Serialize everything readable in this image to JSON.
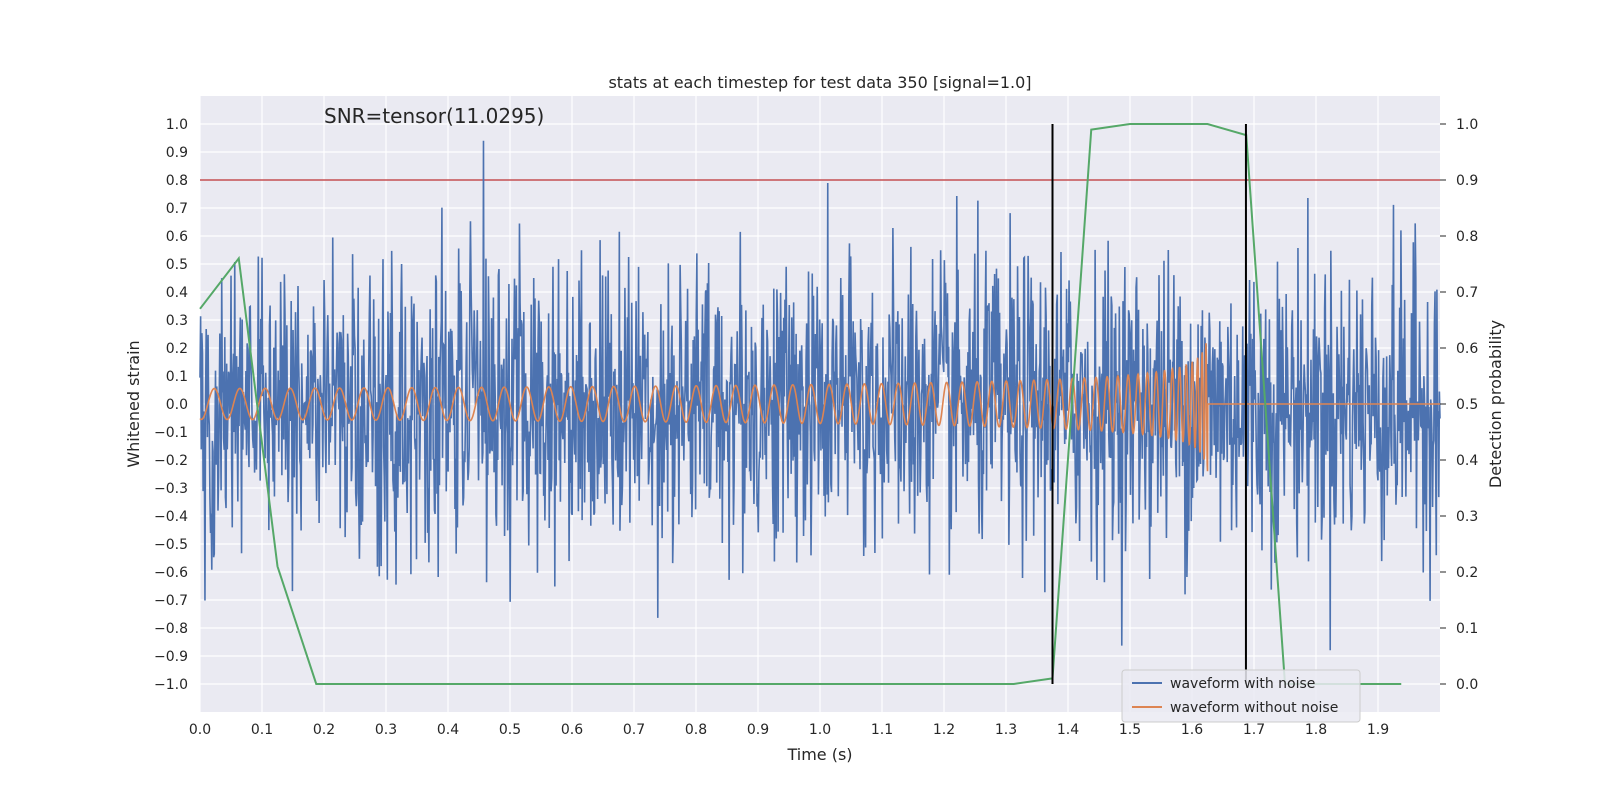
{
  "chart_data": {
    "type": "line",
    "title": "stats at each timestep for test data 350 [signal=1.0]",
    "xlabel": "Time (s)",
    "ylabel": "Whitened strain",
    "y2label": "Detection probability",
    "annotation": "SNR=tensor(11.0295)",
    "xlim": [
      0.0,
      2.0
    ],
    "ylim": [
      -1.1,
      1.1
    ],
    "y2lim": [
      -0.05,
      1.05
    ],
    "x_ticks": [
      "0.0",
      "0.1",
      "0.2",
      "0.3",
      "0.4",
      "0.5",
      "0.6",
      "0.7",
      "0.8",
      "0.9",
      "1.0",
      "1.1",
      "1.2",
      "1.3",
      "1.4",
      "1.5",
      "1.6",
      "1.7",
      "1.8",
      "1.9"
    ],
    "y_ticks": [
      "1.0",
      "0.9",
      "0.8",
      "0.7",
      "0.6",
      "0.5",
      "0.4",
      "0.3",
      "0.2",
      "0.1",
      "0.0",
      "−0.1",
      "−0.2",
      "−0.3",
      "−0.4",
      "−0.5",
      "−0.6",
      "−0.7",
      "−0.8",
      "−0.9",
      "−1.0"
    ],
    "y2_ticks": [
      "1.0",
      "0.9",
      "0.8",
      "0.7",
      "0.6",
      "0.5",
      "0.4",
      "0.3",
      "0.2",
      "0.1",
      "0.0"
    ],
    "grid": true,
    "legend_position": "bottom-right",
    "threshold_line": {
      "axis": "y",
      "value": 0.8,
      "color": "#c44e52"
    },
    "vertical_markers": [
      {
        "x": 1.375,
        "ymin": 0.0,
        "ymax": 1.0,
        "color": "#000000"
      },
      {
        "x": 1.687,
        "ymin": 0.0,
        "ymax": 1.0,
        "color": "#000000"
      }
    ],
    "series": [
      {
        "name": "waveform with noise",
        "color": "#4c72b0",
        "kind": "noise",
        "x_range": [
          0.0,
          2.0
        ],
        "amplitude_note": "random noise approx within [-1.0, 1.0]"
      },
      {
        "name": "waveform without noise",
        "color": "#dd8452",
        "kind": "chirp",
        "x_range": [
          0.0,
          1.625
        ],
        "peak_amplitude": 0.32
      },
      {
        "name": "",
        "color": "#55a868",
        "kind": "probability",
        "axis": "y2",
        "x": [
          0.0,
          0.0625,
          0.125,
          0.1875,
          0.25,
          0.3125,
          0.375,
          0.4375,
          0.5,
          0.5625,
          0.625,
          0.6875,
          0.75,
          0.8125,
          0.875,
          0.9375,
          1.0,
          1.0625,
          1.125,
          1.1875,
          1.25,
          1.3125,
          1.375,
          1.4375,
          1.5,
          1.5625,
          1.625,
          1.6875,
          1.75,
          1.8125,
          1.875,
          1.9375
        ],
        "values": [
          0.67,
          0.76,
          0.21,
          0.0,
          0.0,
          0.0,
          0.0,
          0.0,
          0.0,
          0.0,
          0.0,
          0.0,
          0.0,
          0.0,
          0.0,
          0.0,
          0.0,
          0.0,
          0.0,
          0.0,
          0.0,
          0.0,
          0.01,
          0.99,
          1.0,
          1.0,
          1.0,
          0.98,
          0.0,
          0.0,
          0.0,
          0.0
        ]
      }
    ]
  }
}
